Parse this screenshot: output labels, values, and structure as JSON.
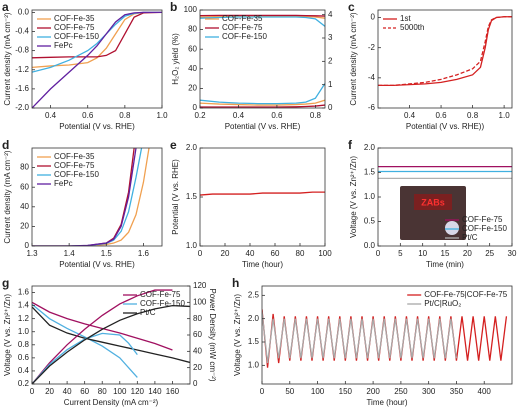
{
  "chart_data": [
    {
      "type": "line",
      "panel": "a",
      "xlabel": "Potential (V vs. RHE)",
      "ylabel": "Current density (mA cm⁻²)",
      "xlim": [
        0.3,
        1.0
      ],
      "xticks": [
        0.4,
        0.6,
        0.8,
        {
          "value": 1,
          "label": "1.0"
        }
      ],
      "ylim": [
        -2.0,
        0.05
      ],
      "yticks": [
        {
          "value": -2,
          "label": "-2.0"
        },
        -1.6,
        -1.2,
        -0.8,
        -0.4,
        {
          "value": 0,
          "label": "0.0"
        }
      ],
      "legend": "upper left",
      "series": [
        {
          "name": "COF-Fe-35",
          "color": "#f0a050",
          "x": [
            0.3,
            0.4,
            0.5,
            0.6,
            0.65,
            0.7,
            0.75,
            0.8,
            0.85,
            0.9,
            1.0
          ],
          "values": [
            -1.15,
            -1.12,
            -1.1,
            -1.05,
            -0.95,
            -0.75,
            -0.45,
            -0.15,
            -0.03,
            0,
            0
          ]
        },
        {
          "name": "COF-Fe-75",
          "color": "#b01030",
          "x": [
            0.3,
            0.4,
            0.5,
            0.6,
            0.65,
            0.7,
            0.75,
            0.8,
            0.85,
            0.9,
            1.0
          ],
          "values": [
            -0.95,
            -0.94,
            -0.93,
            -0.93,
            -0.93,
            -0.9,
            -0.8,
            -0.45,
            -0.1,
            -0.01,
            0
          ]
        },
        {
          "name": "COF-Fe-150",
          "color": "#40b0e0",
          "x": [
            0.3,
            0.4,
            0.5,
            0.6,
            0.65,
            0.7,
            0.75,
            0.8,
            0.85,
            0.9,
            1.0
          ],
          "values": [
            -1.25,
            -1.15,
            -1.0,
            -0.8,
            -0.65,
            -0.45,
            -0.25,
            -0.08,
            -0.02,
            0,
            0
          ]
        },
        {
          "name": "FePc",
          "color": "#6020a0",
          "x": [
            0.3,
            0.4,
            0.5,
            0.6,
            0.65,
            0.7,
            0.75,
            0.8,
            0.85,
            0.9,
            1.0
          ],
          "values": [
            -2.0,
            -1.6,
            -1.25,
            -0.9,
            -0.7,
            -0.45,
            -0.2,
            -0.05,
            -0.01,
            0,
            0
          ]
        }
      ]
    },
    {
      "type": "line",
      "panel": "b",
      "xlabel": "Potential (V vs. RHE)",
      "ylabel": "H₂O₂ yield (%)",
      "xlim": [
        0.2,
        0.85
      ],
      "xticks": [
        0.2,
        0.4,
        0.6,
        0.8
      ],
      "ylim": [
        0,
        100
      ],
      "yticks": [
        0,
        20,
        40,
        60,
        80,
        100
      ],
      "y2lim": [
        0,
        4.2
      ],
      "y2ticks": [
        0,
        1,
        2,
        3,
        4
      ],
      "legend": "upper left",
      "series": [
        {
          "name": "COF-Fe-35",
          "color": "#f0a050",
          "x": [
            0.2,
            0.3,
            0.4,
            0.5,
            0.6,
            0.7,
            0.75,
            0.8,
            0.85
          ],
          "values": [
            5,
            4,
            3.5,
            3,
            3,
            3.5,
            4,
            5,
            8
          ]
        },
        {
          "name": "COF-Fe-75",
          "color": "#b01030",
          "x": [
            0.2,
            0.3,
            0.4,
            0.5,
            0.6,
            0.7,
            0.75,
            0.8,
            0.85
          ],
          "values": [
            1,
            1,
            1,
            1,
            1,
            1.2,
            1.5,
            2,
            3
          ]
        },
        {
          "name": "COF-Fe-150",
          "color": "#40b0e0",
          "x": [
            0.2,
            0.3,
            0.4,
            0.5,
            0.6,
            0.7,
            0.75,
            0.8,
            0.85
          ],
          "values": [
            8,
            6,
            5,
            4.5,
            4.5,
            5,
            6,
            10,
            25
          ]
        },
        {
          "color": "#f0a050",
          "axis": "y2",
          "x": [
            0.2,
            0.3,
            0.4,
            0.5,
            0.6,
            0.7,
            0.75,
            0.8,
            0.85
          ],
          "values": [
            3.9,
            3.92,
            3.93,
            3.94,
            3.94,
            3.93,
            3.92,
            3.9,
            3.85
          ]
        },
        {
          "color": "#b01030",
          "axis": "y2",
          "x": [
            0.2,
            0.3,
            0.4,
            0.5,
            0.6,
            0.7,
            0.75,
            0.8,
            0.85
          ],
          "values": [
            3.96,
            3.97,
            3.97,
            3.97,
            3.97,
            3.97,
            3.96,
            3.95,
            3.94
          ]
        },
        {
          "color": "#40b0e0",
          "axis": "y2",
          "x": [
            0.2,
            0.3,
            0.4,
            0.5,
            0.6,
            0.7,
            0.75,
            0.8,
            0.85
          ],
          "values": [
            3.85,
            3.88,
            3.9,
            3.9,
            3.9,
            3.9,
            3.88,
            3.82,
            3.5
          ]
        }
      ]
    },
    {
      "type": "line",
      "panel": "c",
      "xlabel": "Potential (V vs. RHE))",
      "ylabel": "Current density (mA cm⁻²)",
      "xlim": [
        0.2,
        1.05
      ],
      "xticks": [
        0.4,
        0.6,
        0.8,
        {
          "value": 1,
          "label": "1.0"
        }
      ],
      "ylim": [
        -6,
        0.5
      ],
      "yticks": [
        0,
        -2,
        -4,
        -6
      ],
      "legend": "upper left",
      "series": [
        {
          "name": "1st",
          "color": "#d42020",
          "x": [
            0.2,
            0.3,
            0.4,
            0.5,
            0.6,
            0.7,
            0.8,
            0.85,
            0.88,
            0.9,
            0.92,
            0.95,
            1.0,
            1.05
          ],
          "values": [
            -4.5,
            -4.5,
            -4.45,
            -4.4,
            -4.3,
            -4.1,
            -3.8,
            -3.3,
            -2.0,
            -0.8,
            -0.2,
            0,
            0.05,
            0.05
          ]
        },
        {
          "name": "5000th",
          "color": "#d42020",
          "dash": "dashed",
          "x": [
            0.2,
            0.3,
            0.4,
            0.5,
            0.6,
            0.7,
            0.8,
            0.85,
            0.88,
            0.9,
            0.92,
            0.95,
            1.0,
            1.05
          ],
          "values": [
            -4.5,
            -4.5,
            -4.4,
            -4.3,
            -4.1,
            -3.8,
            -3.4,
            -2.9,
            -1.6,
            -0.6,
            -0.15,
            0,
            0.05,
            0.05
          ]
        }
      ]
    },
    {
      "type": "line",
      "panel": "d",
      "xlabel": "Potential (V vs. RHE)",
      "ylabel": "Current density (mA cm⁻²)",
      "xlim": [
        1.3,
        1.65
      ],
      "xticks": [
        1.3,
        1.4,
        1.5,
        1.6
      ],
      "ylim": [
        0,
        100
      ],
      "yticks": [
        0,
        20,
        40,
        60,
        80
      ],
      "legend": "upper left",
      "series": [
        {
          "name": "COF-Fe-35",
          "color": "#f0a050",
          "x": [
            1.3,
            1.4,
            1.45,
            1.5,
            1.52,
            1.54,
            1.56,
            1.58,
            1.6,
            1.615
          ],
          "values": [
            0,
            0,
            0.4,
            1.5,
            3,
            6,
            14,
            32,
            65,
            100
          ]
        },
        {
          "name": "COF-Fe-75",
          "color": "#b01030",
          "x": [
            1.3,
            1.4,
            1.45,
            1.5,
            1.52,
            1.54,
            1.56,
            1.575
          ],
          "values": [
            0,
            0,
            0.5,
            3,
            8,
            22,
            55,
            100
          ]
        },
        {
          "name": "COF-Fe-150",
          "color": "#40b0e0",
          "x": [
            1.3,
            1.4,
            1.45,
            1.5,
            1.52,
            1.54,
            1.56,
            1.58,
            1.595
          ],
          "values": [
            0,
            0,
            0.5,
            2.5,
            6,
            15,
            35,
            70,
            100
          ]
        },
        {
          "name": "FePc",
          "color": "#6020a0",
          "x": [
            1.3,
            1.4,
            1.45,
            1.5,
            1.52,
            1.54,
            1.56,
            1.58
          ],
          "values": [
            0,
            0,
            0.6,
            3,
            7,
            20,
            50,
            100
          ]
        }
      ]
    },
    {
      "type": "line",
      "panel": "e",
      "xlabel": "Time (hour)",
      "ylabel": "Potential (V vs. RHE)",
      "xlim": [
        0,
        100
      ],
      "xticks": [
        0,
        20,
        40,
        60,
        80,
        100
      ],
      "ylim": [
        1.0,
        2.0
      ],
      "yticks": [
        {
          "value": 1,
          "label": "1.0"
        },
        1.5,
        {
          "value": 2,
          "label": "2.0"
        }
      ],
      "series": [
        {
          "color": "#d42020",
          "x": [
            0,
            10,
            20,
            30,
            40,
            50,
            60,
            70,
            80,
            90,
            100
          ],
          "values": [
            1.52,
            1.53,
            1.53,
            1.53,
            1.53,
            1.54,
            1.54,
            1.54,
            1.54,
            1.55,
            1.55
          ]
        }
      ]
    },
    {
      "type": "line",
      "panel": "f",
      "xlabel": "Time (min)",
      "ylabel": "Voltage (V vs. Zn²⁺/Zn)",
      "xlim": [
        0,
        30
      ],
      "xticks": [
        0,
        5,
        10,
        15,
        20,
        25,
        30
      ],
      "ylim": [
        0,
        2.0
      ],
      "yticks": [
        {
          "value": 0,
          "label": "0.0"
        },
        0.5,
        {
          "value": 1,
          "label": "1.0"
        },
        1.5,
        {
          "value": 2,
          "label": "2.0"
        }
      ],
      "legend": "lower right",
      "inset_text": "ZABs",
      "series": [
        {
          "name": "COF-Fe-75",
          "color": "#a01060",
          "x": [
            0,
            30
          ],
          "values": [
            1.62,
            1.62
          ]
        },
        {
          "name": "COF-Fe-150",
          "color": "#40b0e0",
          "x": [
            0,
            30
          ],
          "values": [
            1.52,
            1.52
          ]
        },
        {
          "name": "Pt/C",
          "color": "#b0b0b0",
          "x": [
            0,
            30
          ],
          "values": [
            1.38,
            1.38
          ]
        }
      ]
    },
    {
      "type": "line",
      "panel": "g",
      "xlabel": "Current Density (mA cm⁻²)",
      "ylabel": "Voltage (V vs. Zn²⁺/Zn)",
      "y2label": "Power Density (mW cm⁻²)",
      "xlim": [
        0,
        180
      ],
      "xticks": [
        0,
        20,
        40,
        60,
        80,
        100,
        120,
        140,
        160
      ],
      "ylim": [
        0.2,
        1.7
      ],
      "yticks": [
        0.2,
        0.4,
        0.6,
        0.8,
        {
          "value": 1,
          "label": "1.0"
        },
        1.2,
        1.4,
        1.6
      ],
      "y2lim": [
        0,
        120
      ],
      "y2ticks": [
        0,
        20,
        40,
        60,
        80,
        100,
        120
      ],
      "legend": "upper right",
      "series": [
        {
          "name": "COF-Fe-75",
          "color": "#a01060",
          "x": [
            0,
            20,
            40,
            60,
            80,
            100,
            120,
            140,
            160
          ],
          "values": [
            1.45,
            1.3,
            1.2,
            1.12,
            1.05,
            0.98,
            0.9,
            0.82,
            0.72
          ]
        },
        {
          "name": "COF-Fe-150",
          "color": "#50b0e0",
          "x": [
            0,
            20,
            40,
            60,
            80,
            100,
            110,
            120
          ],
          "values": [
            1.42,
            1.2,
            1.05,
            0.92,
            0.78,
            0.6,
            0.45,
            0.3
          ]
        },
        {
          "name": "Pt/C",
          "color": "#222222",
          "x": [
            0,
            20,
            40,
            60,
            80,
            100,
            120,
            140,
            160,
            180
          ],
          "values": [
            1.38,
            1.1,
            0.98,
            0.9,
            0.84,
            0.78,
            0.72,
            0.66,
            0.6,
            0.53
          ]
        },
        {
          "color": "#a01060",
          "axis": "y2",
          "x": [
            0,
            20,
            40,
            60,
            80,
            100,
            120,
            140,
            160
          ],
          "values": [
            0,
            26,
            48,
            67,
            84,
            98,
            108,
            115,
            115
          ]
        },
        {
          "color": "#50b0e0",
          "axis": "y2",
          "x": [
            0,
            20,
            40,
            60,
            80,
            100,
            110,
            120
          ],
          "values": [
            0,
            24,
            42,
            55,
            62,
            60,
            50,
            36
          ]
        },
        {
          "color": "#222222",
          "axis": "y2",
          "x": [
            0,
            20,
            40,
            60,
            80,
            100,
            120,
            140,
            160,
            180
          ],
          "values": [
            0,
            22,
            39,
            54,
            67,
            78,
            86,
            92,
            96,
            95
          ]
        }
      ]
    },
    {
      "type": "line",
      "panel": "h",
      "xlabel": "Time (hour)",
      "ylabel": "Voltage (V vs. Zn²⁺/Zn)",
      "xlim": [
        0,
        450
      ],
      "xticks": [
        0,
        50,
        100,
        150,
        200,
        250,
        300,
        350,
        400
      ],
      "ylim": [
        0.6,
        2.7
      ],
      "yticks": [
        {
          "value": 1,
          "label": "1.0"
        },
        1.5,
        {
          "value": 2,
          "label": "2.0"
        },
        2.5
      ],
      "legend": "upper right",
      "series": [
        {
          "name": "COF-Fe-75|COF-Fe-75",
          "color": "#d42020",
          "x": [
            0,
            10,
            20,
            30,
            40,
            50,
            60,
            70,
            80,
            90,
            100,
            110,
            120,
            130,
            140,
            150,
            160,
            170,
            180,
            190,
            200,
            210,
            220,
            230,
            240,
            250,
            260,
            270,
            280,
            290,
            300,
            310,
            320,
            330,
            340,
            350,
            360,
            370,
            380,
            390,
            400,
            410,
            420,
            430,
            440
          ],
          "values": [
            2.2,
            0.95,
            2.1,
            1.05,
            2.05,
            1.1,
            2.05,
            1.1,
            2.05,
            1.1,
            2.05,
            1.1,
            2.05,
            1.1,
            2.05,
            1.1,
            2.05,
            1.1,
            2.05,
            1.1,
            2.05,
            1.1,
            2.05,
            1.1,
            2.05,
            1.1,
            2.05,
            1.1,
            2.05,
            1.1,
            2.05,
            1.1,
            2.05,
            1.1,
            2.05,
            1.1,
            2.05,
            1.1,
            2.05,
            1.1,
            2.05,
            1.1,
            2.05,
            1.1,
            2.05
          ]
        },
        {
          "name": "Pt/C|RuO₂",
          "color": "#a8a8a8",
          "x": [
            0,
            10,
            20,
            30,
            40,
            50,
            60,
            70,
            80,
            90,
            100,
            110,
            120,
            130,
            140,
            150,
            160,
            170,
            180,
            190,
            200,
            210,
            220,
            230,
            240,
            250,
            260,
            270,
            280,
            290,
            300,
            310,
            320,
            330,
            340,
            350
          ],
          "values": [
            2.15,
            1.05,
            2.0,
            1.15,
            2.0,
            1.15,
            2.0,
            1.15,
            2.0,
            1.15,
            2.0,
            1.15,
            2.0,
            1.15,
            2.0,
            1.15,
            2.0,
            1.15,
            2.0,
            1.15,
            2.0,
            1.15,
            2.0,
            1.15,
            2.0,
            1.15,
            2.0,
            1.15,
            2.0,
            1.15,
            2.0,
            1.15,
            2.0,
            1.15,
            2.0,
            1.15
          ]
        }
      ]
    }
  ]
}
